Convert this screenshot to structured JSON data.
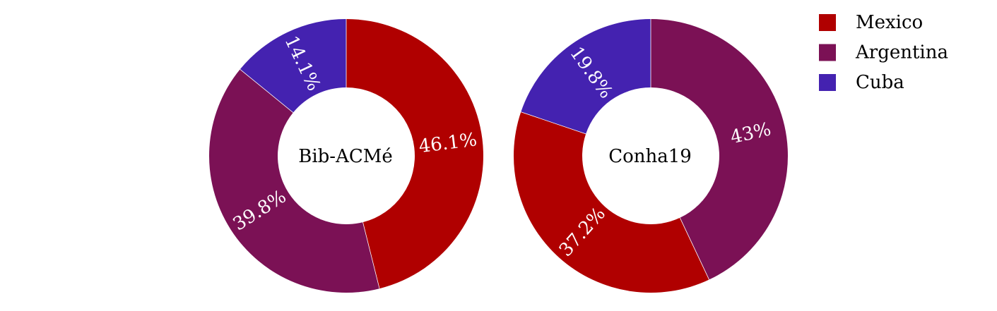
{
  "chart_data": {
    "type": "pie",
    "subtype": "donut",
    "legend": {
      "placement": "top-right",
      "entries": [
        {
          "label": "Mexico",
          "color": "#b00000"
        },
        {
          "label": "Argentina",
          "color": "#7b1155"
        },
        {
          "label": "Cuba",
          "color": "#4422b0"
        }
      ]
    },
    "charts": [
      {
        "name": "Bib-ACMé",
        "slices": [
          {
            "label": "Mexico",
            "value": 46.1,
            "text": "46.1%"
          },
          {
            "label": "Argentina",
            "value": 39.8,
            "text": "39.8%"
          },
          {
            "label": "Cuba",
            "value": 14.1,
            "text": "14.1%"
          }
        ]
      },
      {
        "name": "Conha19",
        "slices": [
          {
            "label": "Argentina",
            "value": 43.0,
            "text": "43%"
          },
          {
            "label": "Mexico",
            "value": 37.2,
            "text": "37.2%"
          },
          {
            "label": "Cuba",
            "value": 19.8,
            "text": "19.8%"
          }
        ]
      }
    ]
  }
}
